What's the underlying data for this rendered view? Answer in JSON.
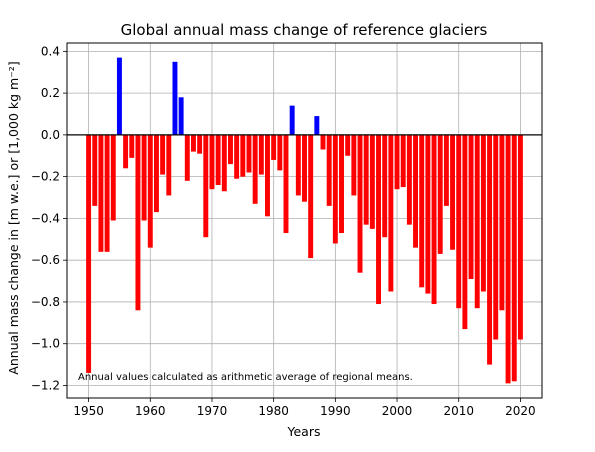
{
  "chart_data": {
    "type": "bar",
    "title": "Global annual mass change of reference glaciers",
    "xlabel": "Years",
    "ylabel": "Annual mass change in [m w.e.] or [1,000 kg m⁻²]",
    "annotation": "Annual values calculated as arithmetic average of regional means.",
    "xlim": [
      1946.5,
      2023.5
    ],
    "ylim": [
      -1.26,
      0.44
    ],
    "x_ticks": [
      1950,
      1960,
      1970,
      1980,
      1990,
      2000,
      2010,
      2020
    ],
    "y_ticks": [
      0.4,
      0.2,
      0.0,
      -0.2,
      -0.4,
      -0.6,
      -0.8,
      -1.0,
      -1.2
    ],
    "y_tick_labels": [
      "0.4",
      "0.2",
      "0.0",
      "−0.2",
      "−0.4",
      "−0.6",
      "−0.8",
      "−1.0",
      "−1.2"
    ],
    "grid": true,
    "zero_line": true,
    "colors": {
      "positive": "#0000ff",
      "negative": "#ff0000"
    },
    "x": [
      1950,
      1951,
      1952,
      1953,
      1954,
      1955,
      1956,
      1957,
      1958,
      1959,
      1960,
      1961,
      1962,
      1963,
      1964,
      1965,
      1966,
      1967,
      1968,
      1969,
      1970,
      1971,
      1972,
      1973,
      1974,
      1975,
      1976,
      1977,
      1978,
      1979,
      1980,
      1981,
      1982,
      1983,
      1984,
      1985,
      1986,
      1987,
      1988,
      1989,
      1990,
      1991,
      1992,
      1993,
      1994,
      1995,
      1996,
      1997,
      1998,
      1999,
      2000,
      2001,
      2002,
      2003,
      2004,
      2005,
      2006,
      2007,
      2008,
      2009,
      2010,
      2011,
      2012,
      2013,
      2014,
      2015,
      2016,
      2017,
      2018,
      2019,
      2020
    ],
    "values": [
      -1.14,
      -0.34,
      -0.56,
      -0.56,
      -0.41,
      0.37,
      -0.16,
      -0.11,
      -0.84,
      -0.41,
      -0.54,
      -0.37,
      -0.19,
      -0.29,
      0.35,
      0.18,
      -0.22,
      -0.08,
      -0.09,
      -0.49,
      -0.26,
      -0.24,
      -0.27,
      -0.14,
      -0.21,
      -0.2,
      -0.18,
      -0.33,
      -0.19,
      -0.39,
      -0.12,
      -0.17,
      -0.47,
      0.14,
      -0.29,
      -0.32,
      -0.59,
      0.09,
      -0.07,
      -0.34,
      -0.52,
      -0.47,
      -0.1,
      -0.29,
      -0.66,
      -0.43,
      -0.45,
      -0.81,
      -0.49,
      -0.75,
      -0.26,
      -0.25,
      -0.43,
      -0.54,
      -0.73,
      -0.76,
      -0.81,
      -0.57,
      -0.34,
      -0.55,
      -0.83,
      -0.93,
      -0.69,
      -0.83,
      -0.75,
      -1.1,
      -0.98,
      -0.84,
      -1.19,
      -1.18,
      -0.98
    ]
  }
}
